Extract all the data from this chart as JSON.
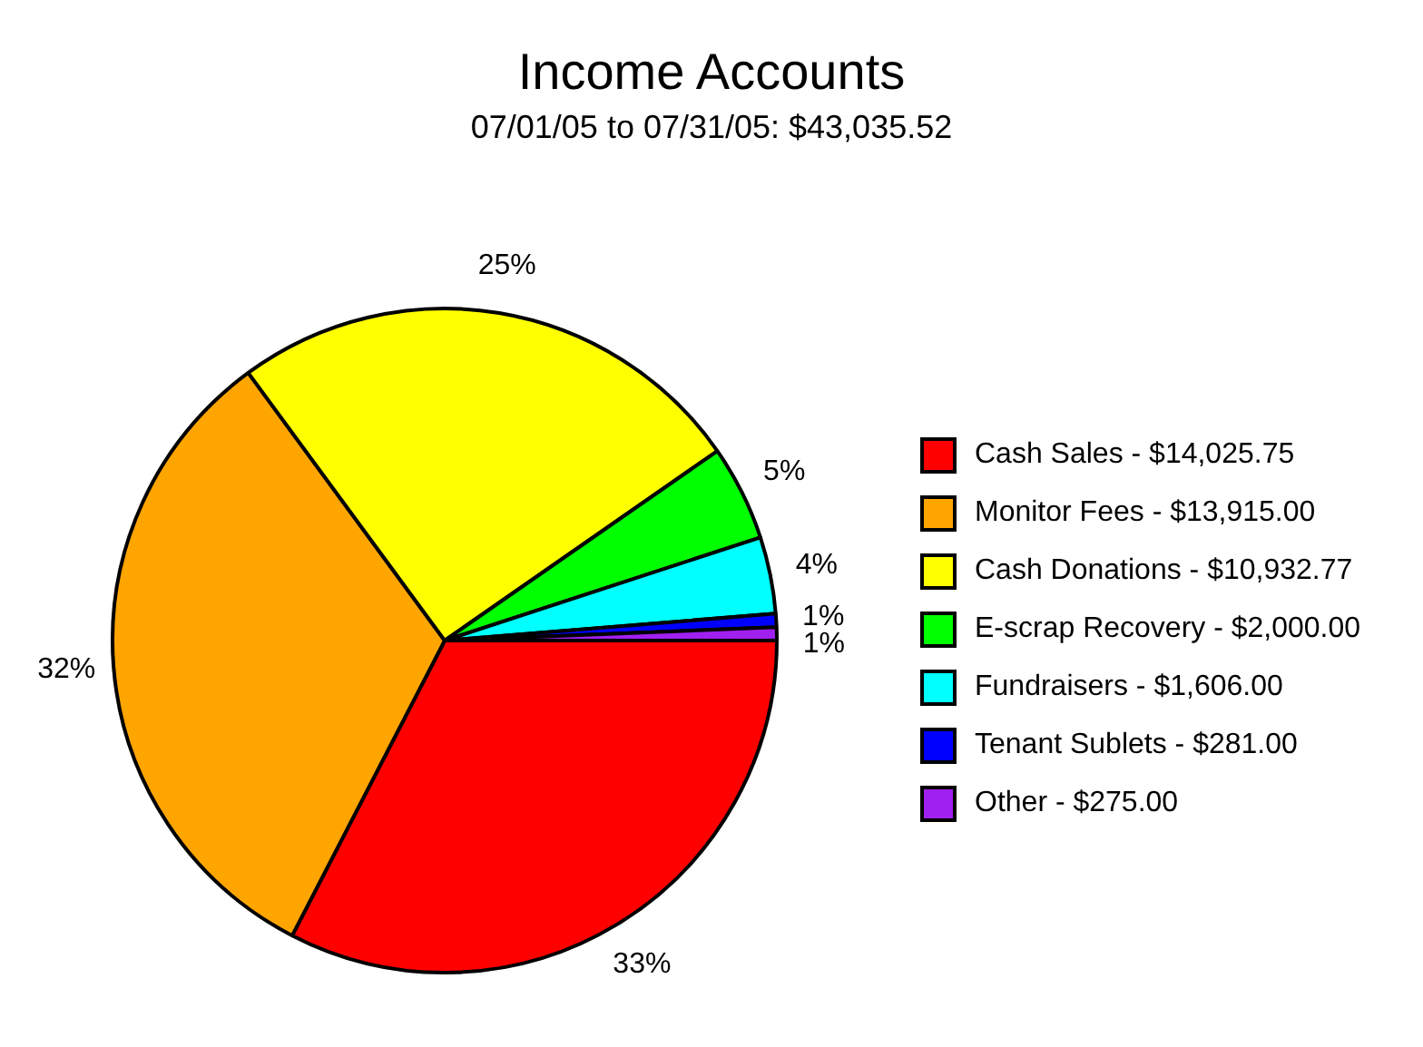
{
  "chart_data": {
    "type": "pie",
    "title": "Income Accounts",
    "subtitle": "07/01/05 to 07/31/05: $43,035.52",
    "categories": [
      "Cash Sales - $14,025.75",
      "Monitor Fees - $13,915.00",
      "Cash Donations - $10,932.77",
      "E-scrap Recovery - $2,000.00",
      "Fundraisers - $1,606.00",
      "Tenant Sublets - $281.00",
      "Other - $275.00"
    ],
    "values": [
      32.591,
      32.334,
      25.404,
      4.647,
      3.732,
      0.653,
      0.639
    ],
    "colors": [
      "#ff0000",
      "#ffa500",
      "#ffff00",
      "#00ff00",
      "#00ffff",
      "#0000ff",
      "#a020f0"
    ],
    "value_labels": [
      "33%",
      "32%",
      "25%",
      "5%",
      "4%",
      "1%",
      "1%"
    ],
    "legend": "right"
  }
}
